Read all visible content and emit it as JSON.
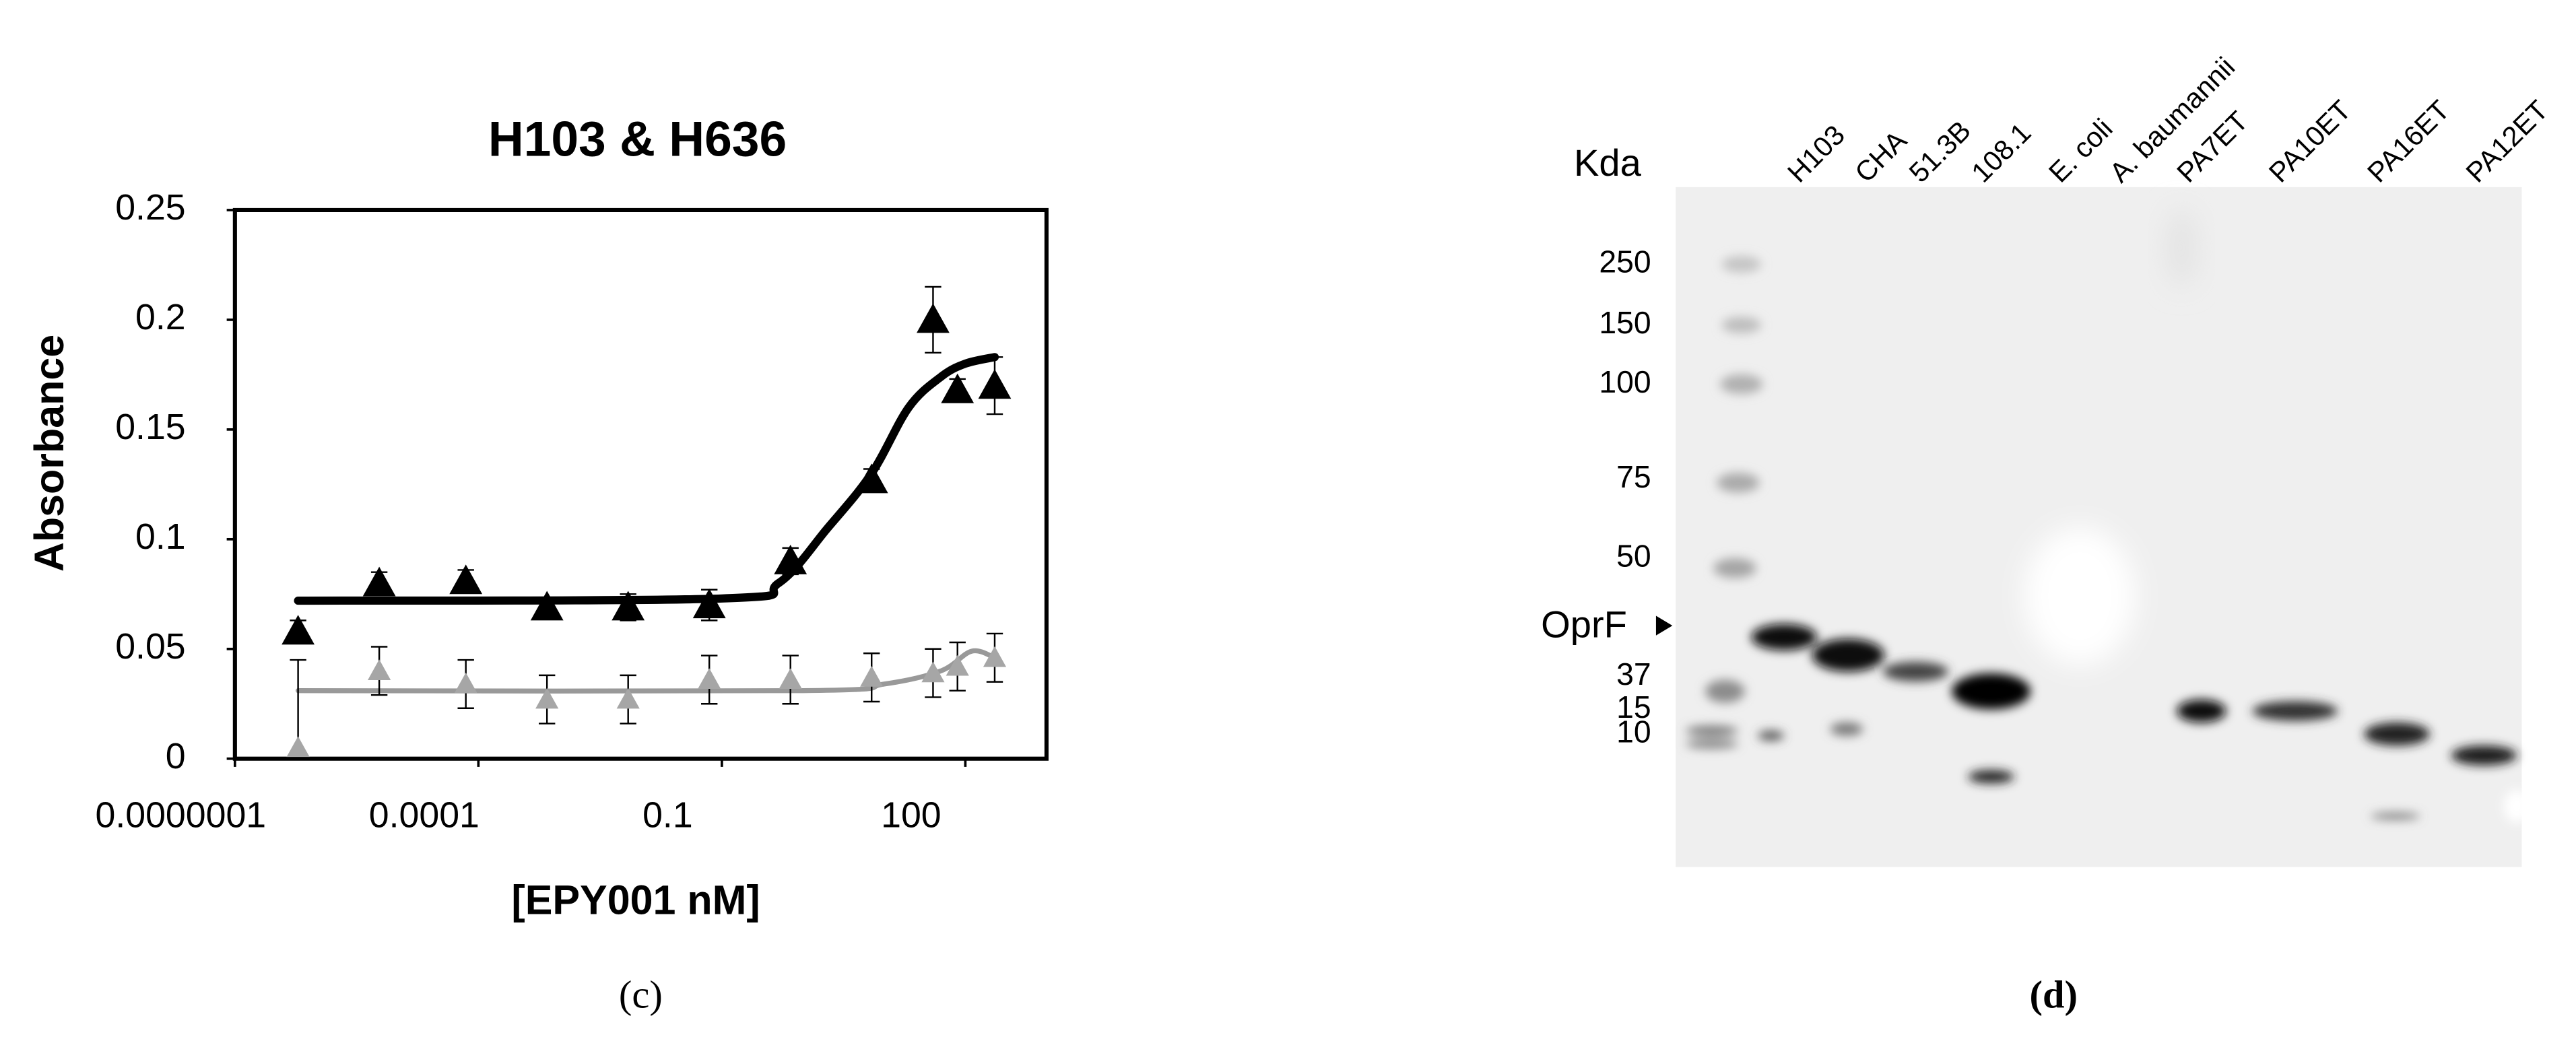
{
  "chart_data": {
    "type": "scatter",
    "title": "H103 & H636",
    "x_label": "[EPY001 nM]",
    "y_label": "Absorbance",
    "log_x": true,
    "xlim": [
      1e-07,
      1000
    ],
    "xticks": [
      {
        "value": 1e-07,
        "label": "0.0000001"
      },
      0.0001,
      0.1,
      100
    ],
    "ylim": [
      0,
      0.25
    ],
    "yticks": [
      0,
      0.05,
      0.1,
      0.15,
      0.2,
      0.25
    ],
    "x": [
      6e-07,
      6e-06,
      7e-05,
      0.0007,
      0.007,
      0.07,
      0.7,
      7,
      40,
      80,
      230
    ],
    "series": [
      {
        "color": "#000000",
        "values": [
          0.058,
          0.08,
          0.081,
          0.069,
          0.069,
          0.07,
          0.09,
          0.127,
          0.2,
          0.168,
          0.17
        ],
        "errors": [
          0.005,
          0.005,
          0.005,
          0.004,
          0.006,
          0.007,
          0.006,
          0.005,
          0.015,
          0.005,
          0.013
        ]
      },
      {
        "color": "#a6a6a6",
        "values": [
          0.005,
          0.04,
          0.034,
          0.027,
          0.027,
          0.036,
          0.036,
          0.037,
          0.039,
          0.042,
          0.046
        ],
        "errors": [
          0.04,
          0.011,
          0.011,
          0.011,
          0.011,
          0.011,
          0.011,
          0.011,
          0.011,
          0.011,
          0.011
        ]
      }
    ],
    "fits": [
      {
        "color": "#000000",
        "x": [
          6e-07,
          0.1,
          0.5,
          2,
          7,
          20,
          50,
          100,
          230
        ],
        "values": [
          0.072,
          0.073,
          0.08,
          0.105,
          0.13,
          0.16,
          0.174,
          0.18,
          0.183
        ]
      },
      {
        "color": "#999999",
        "x": [
          6e-07,
          1,
          10,
          50,
          120,
          230
        ],
        "values": [
          0.031,
          0.031,
          0.034,
          0.04,
          0.049,
          0.046
        ]
      }
    ]
  },
  "blot": {
    "unit_label": "Kda",
    "markers": [
      250,
      150,
      100,
      75,
      50,
      37,
      15,
      10
    ],
    "band_label": "OprF",
    "lanes": [
      "H103",
      "CHA",
      "51.3B",
      "108.1",
      "E. coli",
      "A. baumannii",
      "PA7ET",
      "PA10ET",
      "PA16ET",
      "PA12ET"
    ]
  },
  "panel_labels": [
    "(c)",
    "(d)"
  ]
}
